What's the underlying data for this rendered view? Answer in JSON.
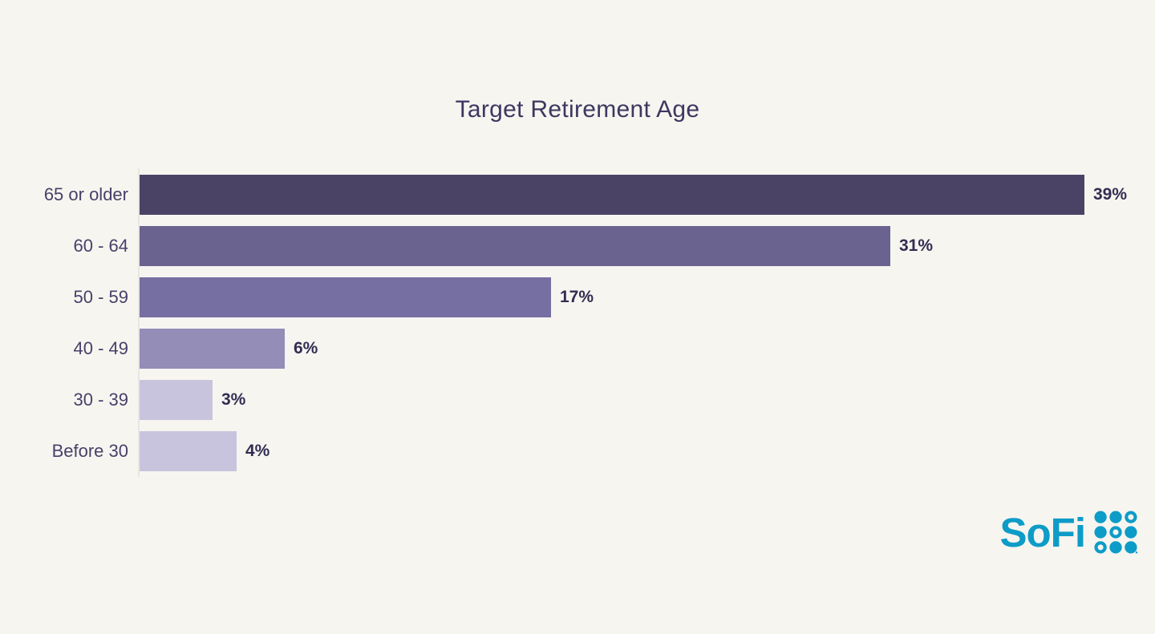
{
  "title": "Target Retirement Age",
  "chart_data": {
    "type": "bar",
    "orientation": "horizontal",
    "title": "Target Retirement Age",
    "categories": [
      "65 or older",
      "60 - 64",
      "50 - 59",
      "40 - 49",
      "30 - 39",
      "Before 30"
    ],
    "values": [
      39,
      31,
      17,
      6,
      3,
      4
    ],
    "value_labels": [
      "39%",
      "31%",
      "17%",
      "6%",
      "3%",
      "4%"
    ],
    "xlabel": "",
    "ylabel": "",
    "xlim": [
      0,
      42
    ],
    "grid": false,
    "legend": false,
    "bar_colors": [
      "#4a4365",
      "#6a6390",
      "#766fa2",
      "#948db8",
      "#c8c4dd",
      "#c8c4dd"
    ]
  },
  "colors": {
    "background": "#f7f5f0",
    "title_text": "#3d3860",
    "category_label_text": "#474169",
    "value_label_text": "#322d52",
    "axis_line": "#e9e7e1",
    "brand_teal": "#0d9cc7"
  },
  "branding": {
    "logo_text": "SoFi"
  }
}
